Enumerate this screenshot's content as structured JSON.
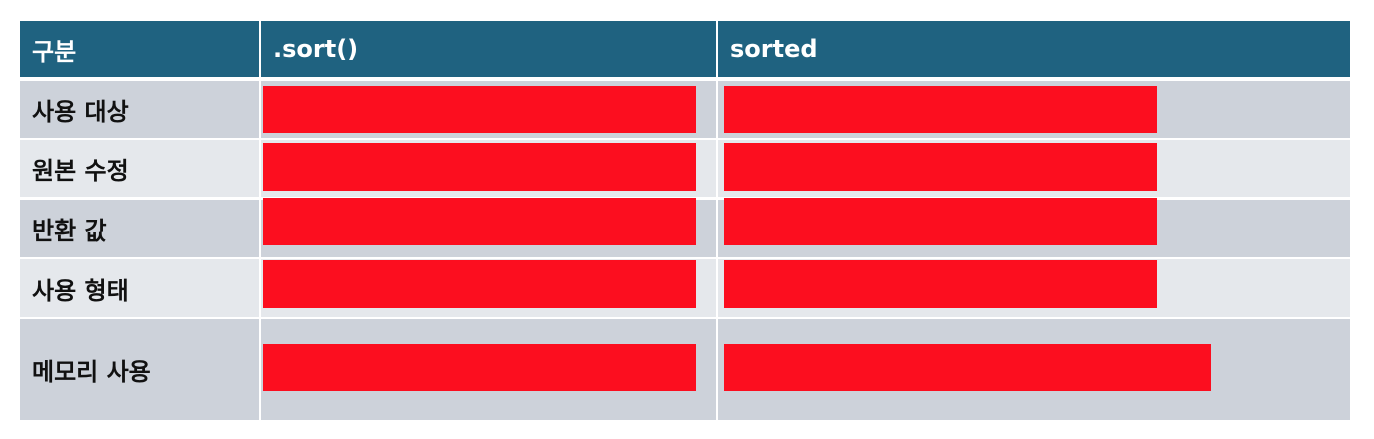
{
  "table": {
    "headers": [
      "구분",
      ".sort()",
      "sorted"
    ],
    "rows": [
      {
        "label": "사용 대상"
      },
      {
        "label": "원본 수정"
      },
      {
        "label": "반환 값"
      },
      {
        "label": "사용 형태"
      },
      {
        "label": "메모리 사용"
      }
    ]
  },
  "colors": {
    "header_bg": "#1f6280",
    "row_odd_bg": "#cdd2da",
    "row_even_bg": "#e5e8ec",
    "redaction": "#fc0e1f"
  }
}
